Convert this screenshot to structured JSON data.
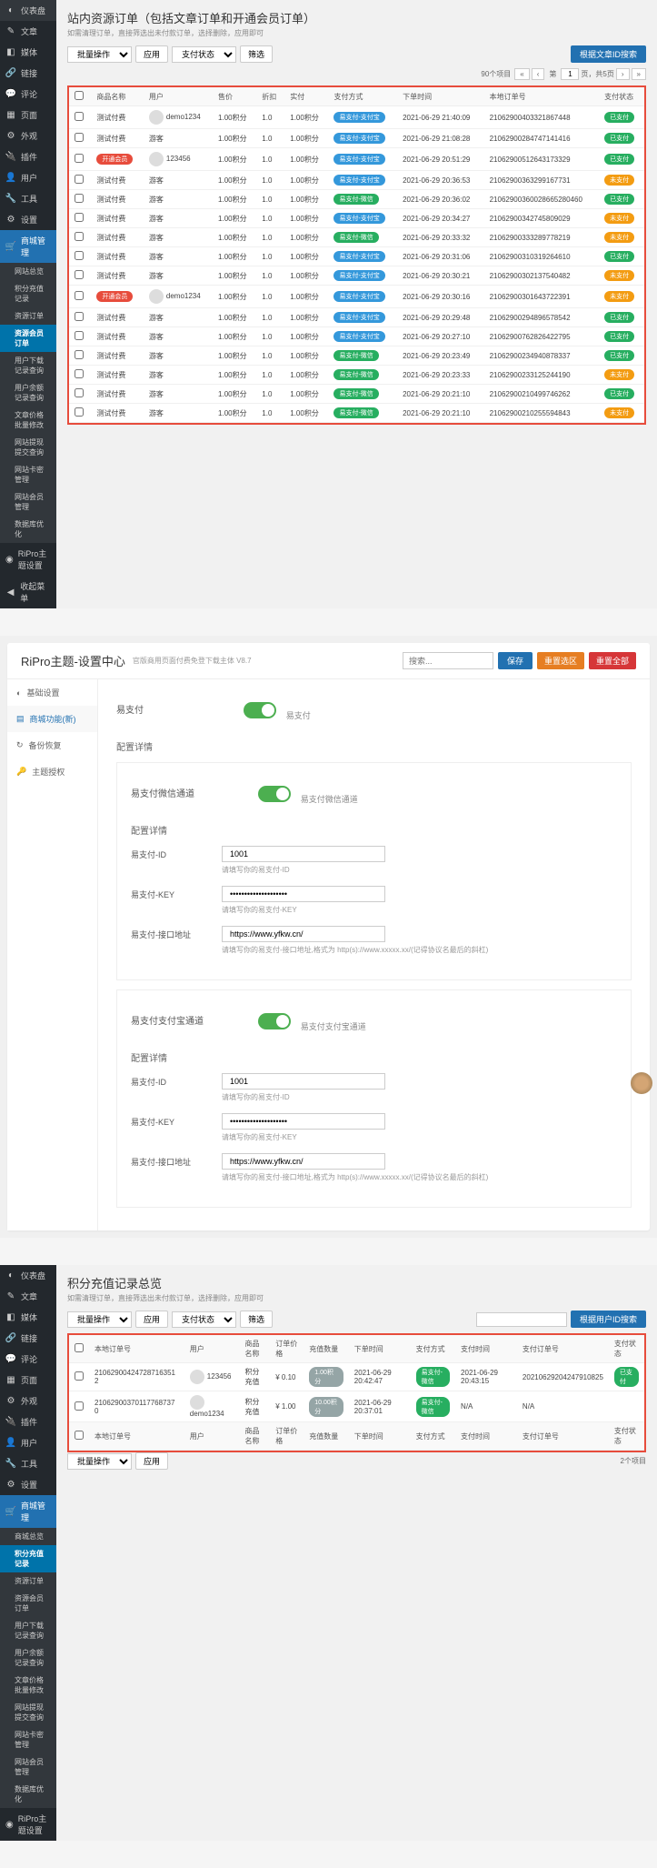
{
  "section1": {
    "sidebar": [
      {
        "icon": "◐",
        "label": "仪表盘"
      },
      {
        "icon": "✎",
        "label": "文章"
      },
      {
        "icon": "◧",
        "label": "媒体"
      },
      {
        "icon": "🔗",
        "label": "链接"
      },
      {
        "icon": "💬",
        "label": "评论"
      },
      {
        "icon": "▦",
        "label": "页面"
      },
      {
        "icon": "⚙",
        "label": "外观"
      },
      {
        "icon": "🔌",
        "label": "插件"
      },
      {
        "icon": "👤",
        "label": "用户"
      },
      {
        "icon": "🔧",
        "label": "工具"
      },
      {
        "icon": "⚙",
        "label": "设置"
      }
    ],
    "mall_label": "商城管理",
    "submenu": [
      "网站总览",
      "积分充值记录",
      "资源订单",
      "资源会员订单",
      "用户下载记录查询",
      "用户余额记录查询",
      "文章价格批量修改",
      "网站提现提交查询",
      "网站卡密管理",
      "网站会员管理",
      "数据库优化"
    ],
    "ripro_label": "RiPro主题设置",
    "collapse_label": "收起菜单",
    "title": "站内资源订单（包括文章订单和开通会员订单）",
    "subtitle": "如需清理订单，直接筛选出未付款订单，选择删除，应用即可",
    "bulk_action": "批量操作",
    "apply": "应用",
    "pay_status": "支付状态",
    "filter": "筛选",
    "search_btn": "根据文章ID搜索",
    "count_label": "90个项目",
    "page_of": "页，共5页",
    "columns": [
      "商品名称",
      "用户",
      "售价",
      "折扣",
      "实付",
      "支付方式",
      "下单时间",
      "本地订单号",
      "支付状态"
    ],
    "rows": [
      {
        "name": "测试付费",
        "user": "demo1234",
        "av": true,
        "p1": "1.00积分",
        "d": "1.0",
        "p2": "1.00积分",
        "pay": "易支付-支付宝",
        "payc": "blue",
        "time": "2021-06-29 21:40:09",
        "order": "21062900403321867448",
        "status": "已支付",
        "sc": "green"
      },
      {
        "name": "测试付费",
        "user": "游客",
        "p1": "1.00积分",
        "d": "1.0",
        "p2": "1.00积分",
        "pay": "易支付-支付宝",
        "payc": "blue",
        "time": "2021-06-29 21:08:28",
        "order": "21062900284747141416",
        "status": "已支付",
        "sc": "green"
      },
      {
        "name": "开通会员",
        "namec": "red",
        "user": "123456",
        "av": true,
        "p1": "1.00积分",
        "d": "1.0",
        "p2": "1.00积分",
        "pay": "易支付-支付宝",
        "payc": "blue",
        "time": "2021-06-29 20:51:29",
        "order": "21062900512643173329",
        "status": "已支付",
        "sc": "green"
      },
      {
        "name": "测试付费",
        "user": "游客",
        "p1": "1.00积分",
        "d": "1.0",
        "p2": "1.00积分",
        "pay": "易支付-支付宝",
        "payc": "blue",
        "time": "2021-06-29 20:36:53",
        "order": "21062900363299167731",
        "status": "未支付",
        "sc": "orange"
      },
      {
        "name": "测试付费",
        "user": "游客",
        "p1": "1.00积分",
        "d": "1.0",
        "p2": "1.00积分",
        "pay": "易支付-微信",
        "payc": "green",
        "time": "2021-06-29 20:36:02",
        "order": "21062900360028665280460",
        "status": "已支付",
        "sc": "green"
      },
      {
        "name": "测试付费",
        "user": "游客",
        "p1": "1.00积分",
        "d": "1.0",
        "p2": "1.00积分",
        "pay": "易支付-支付宝",
        "payc": "blue",
        "time": "2021-06-29 20:34:27",
        "order": "21062900342745809029",
        "status": "未支付",
        "sc": "orange"
      },
      {
        "name": "测试付费",
        "user": "游客",
        "p1": "1.00积分",
        "d": "1.0",
        "p2": "1.00积分",
        "pay": "易支付-微信",
        "payc": "green",
        "time": "2021-06-29 20:33:32",
        "order": "21062900333289778219",
        "status": "未支付",
        "sc": "orange"
      },
      {
        "name": "测试付费",
        "user": "游客",
        "p1": "1.00积分",
        "d": "1.0",
        "p2": "1.00积分",
        "pay": "易支付-支付宝",
        "payc": "blue",
        "time": "2021-06-29 20:31:06",
        "order": "21062900310319264610",
        "status": "已支付",
        "sc": "green"
      },
      {
        "name": "测试付费",
        "user": "游客",
        "p1": "1.00积分",
        "d": "1.0",
        "p2": "1.00积分",
        "pay": "易支付-支付宝",
        "payc": "blue",
        "time": "2021-06-29 20:30:21",
        "order": "21062900302137540482",
        "status": "未支付",
        "sc": "orange"
      },
      {
        "name": "开通会员",
        "namec": "red",
        "user": "demo1234",
        "av": true,
        "p1": "1.00积分",
        "d": "1.0",
        "p2": "1.00积分",
        "pay": "易支付-支付宝",
        "payc": "blue",
        "time": "2021-06-29 20:30:16",
        "order": "21062900301643722391",
        "status": "未支付",
        "sc": "orange"
      },
      {
        "name": "测试付费",
        "user": "游客",
        "p1": "1.00积分",
        "d": "1.0",
        "p2": "1.00积分",
        "pay": "易支付-支付宝",
        "payc": "blue",
        "time": "2021-06-29 20:29:48",
        "order": "21062900294896578542",
        "status": "已支付",
        "sc": "green"
      },
      {
        "name": "测试付费",
        "user": "游客",
        "p1": "1.00积分",
        "d": "1.0",
        "p2": "1.00积分",
        "pay": "易支付-支付宝",
        "payc": "blue",
        "time": "2021-06-29 20:27:10",
        "order": "21062900762826422795",
        "status": "已支付",
        "sc": "green"
      },
      {
        "name": "测试付费",
        "user": "游客",
        "p1": "1.00积分",
        "d": "1.0",
        "p2": "1.00积分",
        "pay": "易支付-微信",
        "payc": "green",
        "time": "2021-06-29 20:23:49",
        "order": "21062900234940878337",
        "status": "已支付",
        "sc": "green"
      },
      {
        "name": "测试付费",
        "user": "游客",
        "p1": "1.00积分",
        "d": "1.0",
        "p2": "1.00积分",
        "pay": "易支付-微信",
        "payc": "green",
        "time": "2021-06-29 20:23:33",
        "order": "21062900233125244190",
        "status": "未支付",
        "sc": "orange"
      },
      {
        "name": "测试付费",
        "user": "游客",
        "p1": "1.00积分",
        "d": "1.0",
        "p2": "1.00积分",
        "pay": "易支付-微信",
        "payc": "green",
        "time": "2021-06-29 20:21:10",
        "order": "21062900210499746262",
        "status": "已支付",
        "sc": "green"
      },
      {
        "name": "测试付费",
        "user": "游客",
        "p1": "1.00积分",
        "d": "1.0",
        "p2": "1.00积分",
        "pay": "易支付-微信",
        "payc": "green",
        "time": "2021-06-29 20:21:10",
        "order": "21062900210255594843",
        "status": "未支付",
        "sc": "orange"
      }
    ]
  },
  "section2": {
    "title": "RiPro主题-设置中心",
    "subtitle": "官版商用页面付费免登下载主体 V8.7",
    "search_ph": "搜索...",
    "save": "保存",
    "reset": "重置选区",
    "reset_all": "重置全部",
    "sidemenu": [
      {
        "icon": "◐",
        "label": "基础设置"
      },
      {
        "icon": "▤",
        "label": "商城功能(新)",
        "active": true
      },
      {
        "icon": "↻",
        "label": "备份恢复"
      },
      {
        "icon": "🔑",
        "label": "主题授权"
      }
    ],
    "easy_pay": "易支付",
    "on": "开",
    "config_title": "配置详情",
    "wechat_channel": "易支付微信通道",
    "wechat_channel_tip": "易支付微信通道",
    "alipay_channel": "易支付支付宝通道",
    "alipay_channel_tip": "易支付支付宝通道",
    "fields": {
      "id_label": "易支付-ID",
      "id_val": "1001",
      "id_help": "请填写你的易支付-ID",
      "key_label": "易支付-KEY",
      "key_val": "••••••••••••••••••••",
      "key_help": "请填写你的易支付-KEY",
      "api_label": "易支付-接口地址",
      "api_val": "https://www.yfkw.cn/",
      "api_help": "请填写你的易支付-接口地址,格式为 http(s)://www.xxxxx.xx/(记得协议名最后的斜杠)"
    }
  },
  "section3": {
    "title": "积分充值记录总览",
    "subtitle": "如需清理订单，直接筛选出未付款订单，选择删除，应用即可",
    "search_btn": "根据用户ID搜索",
    "columns": [
      "本地订单号",
      "用户",
      "商品名称",
      "订单价格",
      "充值数量",
      "下单时间",
      "支付方式",
      "支付时间",
      "支付订单号",
      "支付状态"
    ],
    "rows": [
      {
        "order": "21062900424728716351 2",
        "user": "123456",
        "name": "积分充值",
        "price": "¥ 0.10",
        "qty": "1.00积分",
        "time": "2021-06-29 20:42:47",
        "pay": "易支付-微信",
        "payc": "green",
        "ptime": "2021-06-29 20:43:15",
        "porder": "20210629204247910825",
        "status": "已支付",
        "sc": "green"
      },
      {
        "order": "21062900370117768737 0",
        "user": "demo1234",
        "name": "积分充值",
        "price": "¥ 1.00",
        "qty": "10.00积分",
        "time": "2021-06-29 20:37:01",
        "pay": "易支付-微信",
        "payc": "green",
        "ptime": "N/A",
        "porder": "N/A",
        "status": "",
        "sc": ""
      }
    ],
    "count": "2个项目",
    "submenu": [
      "商城总览",
      "积分充值记录",
      "资源订单",
      "资源会员订单",
      "用户下载记录查询",
      "用户余额记录查询",
      "文章价格批量修改",
      "网站提现提交查询",
      "网站卡密管理",
      "网站会员管理",
      "数据库优化"
    ]
  }
}
